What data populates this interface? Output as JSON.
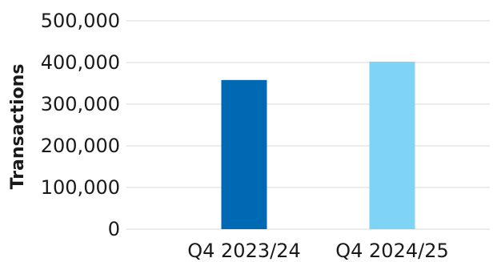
{
  "chart_data": {
    "type": "bar",
    "categories": [
      "Q4 2023/24",
      "Q4 2024/25"
    ],
    "values": [
      358000,
      402000
    ],
    "ylabel": "Transactions",
    "xlabel": "",
    "ylim": [
      0,
      500000
    ],
    "yticks": [
      0,
      100000,
      200000,
      300000,
      400000,
      500000
    ],
    "ytick_labels": [
      "0",
      "100,000",
      "200,000",
      "300,000",
      "400,000",
      "500,000"
    ],
    "grid": true,
    "legend": "none",
    "bar_colors": [
      "#0069b4",
      "#7fd3f4"
    ]
  }
}
